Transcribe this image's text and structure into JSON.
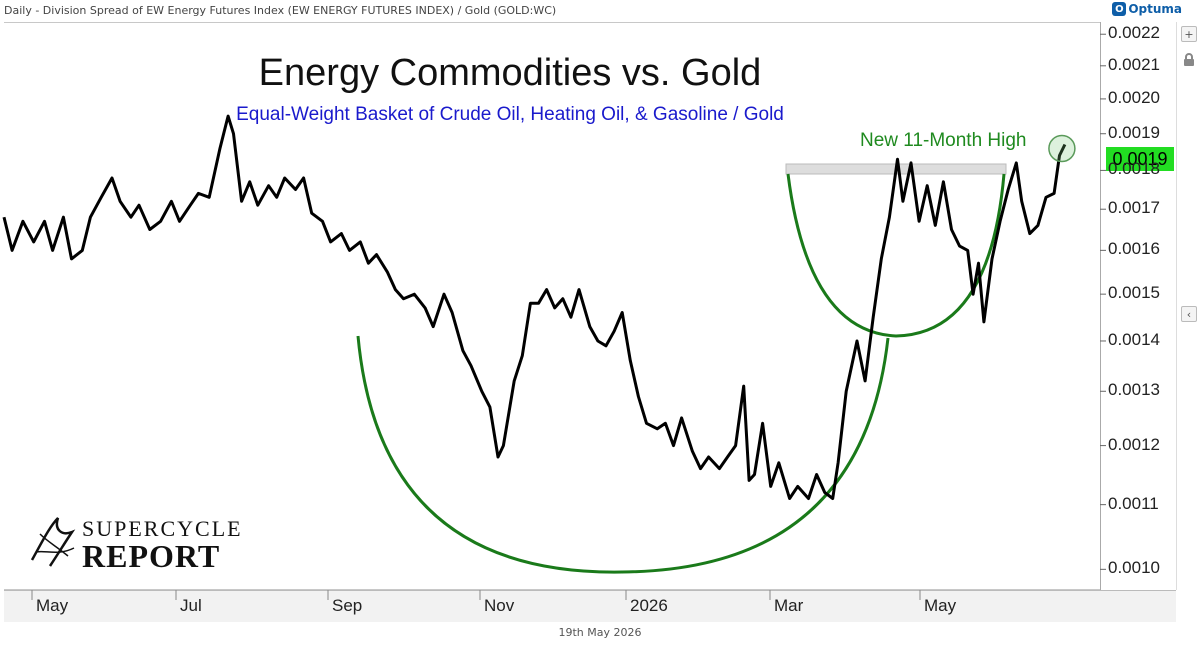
{
  "header": {
    "info": "Daily - Division Spread of EW Energy Futures Index (EW ENERGY FUTURES INDEX) / Gold (GOLD:WC)",
    "logo_text": "Optuma"
  },
  "footer": {
    "date": "19th May 2026"
  },
  "brand": {
    "line1": "SUPERCYCLE",
    "line2": "REPORT"
  },
  "colors": {
    "line": "#000000",
    "arc": "#1a7a1a",
    "annotation": "#1f8a1f",
    "subtitle": "#1a1acc",
    "last_badge": "#22dd22"
  },
  "icons": {
    "lock": "lock-icon",
    "add": "plus-icon",
    "collapse": "chevron-left-icon"
  },
  "chart_data": {
    "type": "line",
    "title": "Energy Commodities vs. Gold",
    "subtitle": "Equal-Weight Basket of Crude Oil, Heating Oil, & Gasoline / Gold",
    "annotation": "New 11-Month High",
    "last_value_label": "0.0019",
    "y_scale": "log",
    "ylim": [
      0.00097,
      0.00224
    ],
    "y_ticks": [
      "0.0022",
      "0.0021",
      "0.0020",
      "0.0019",
      "0.0018",
      "0.0017",
      "0.0016",
      "0.0015",
      "0.0014",
      "0.0013",
      "0.0012",
      "0.0011",
      "0.0010"
    ],
    "x_ticks": [
      "May",
      "Jul",
      "Sep",
      "Nov",
      "2026",
      "Mar",
      "May"
    ],
    "x_range": [
      "2025-04-21",
      "2026-06-01"
    ],
    "legend": "none",
    "grid": false,
    "series": [
      {
        "points": [
          [
            "2025-04-21",
            0.00168
          ],
          [
            "2025-04-24",
            0.0016
          ],
          [
            "2025-04-28",
            0.00167
          ],
          [
            "2025-05-02",
            0.00162
          ],
          [
            "2025-05-06",
            0.00167
          ],
          [
            "2025-05-09",
            0.0016
          ],
          [
            "2025-05-13",
            0.00168
          ],
          [
            "2025-05-16",
            0.00158
          ],
          [
            "2025-05-20",
            0.0016
          ],
          [
            "2025-05-23",
            0.00168
          ],
          [
            "2025-05-27",
            0.00173
          ],
          [
            "2025-05-31",
            0.00178
          ],
          [
            "2025-06-03",
            0.00172
          ],
          [
            "2025-06-07",
            0.00168
          ],
          [
            "2025-06-10",
            0.00171
          ],
          [
            "2025-06-14",
            0.00165
          ],
          [
            "2025-06-18",
            0.00167
          ],
          [
            "2025-06-22",
            0.00172
          ],
          [
            "2025-06-25",
            0.00167
          ],
          [
            "2025-06-29",
            0.00171
          ],
          [
            "2025-07-02",
            0.00174
          ],
          [
            "2025-07-06",
            0.00173
          ],
          [
            "2025-07-10",
            0.00186
          ],
          [
            "2025-07-13",
            0.00195
          ],
          [
            "2025-07-15",
            0.0019
          ],
          [
            "2025-07-18",
            0.00172
          ],
          [
            "2025-07-21",
            0.00177
          ],
          [
            "2025-07-24",
            0.00171
          ],
          [
            "2025-07-28",
            0.00176
          ],
          [
            "2025-07-31",
            0.00173
          ],
          [
            "2025-08-03",
            0.00178
          ],
          [
            "2025-08-07",
            0.00175
          ],
          [
            "2025-08-10",
            0.00178
          ],
          [
            "2025-08-13",
            0.00169
          ],
          [
            "2025-08-17",
            0.00167
          ],
          [
            "2025-08-20",
            0.00162
          ],
          [
            "2025-08-24",
            0.00164
          ],
          [
            "2025-08-27",
            0.0016
          ],
          [
            "2025-08-31",
            0.00162
          ],
          [
            "2025-09-03",
            0.00157
          ],
          [
            "2025-09-06",
            0.00159
          ],
          [
            "2025-09-10",
            0.00155
          ],
          [
            "2025-09-13",
            0.00151
          ],
          [
            "2025-09-16",
            0.00149
          ],
          [
            "2025-09-20",
            0.0015
          ],
          [
            "2025-09-24",
            0.00147
          ],
          [
            "2025-09-27",
            0.00143
          ],
          [
            "2025-10-01",
            0.0015
          ],
          [
            "2025-10-04",
            0.00146
          ],
          [
            "2025-10-08",
            0.00138
          ],
          [
            "2025-10-11",
            0.00135
          ],
          [
            "2025-10-15",
            0.0013
          ],
          [
            "2025-10-18",
            0.00127
          ],
          [
            "2025-10-21",
            0.00118
          ],
          [
            "2025-10-23",
            0.0012
          ],
          [
            "2025-10-27",
            0.00132
          ],
          [
            "2025-10-30",
            0.00137
          ],
          [
            "2025-11-02",
            0.00148
          ],
          [
            "2025-11-05",
            0.00148
          ],
          [
            "2025-11-08",
            0.00151
          ],
          [
            "2025-11-11",
            0.00147
          ],
          [
            "2025-11-14",
            0.00149
          ],
          [
            "2025-11-17",
            0.00145
          ],
          [
            "2025-11-20",
            0.00151
          ],
          [
            "2025-11-24",
            0.00143
          ],
          [
            "2025-11-27",
            0.0014
          ],
          [
            "2025-11-30",
            0.00139
          ],
          [
            "2025-12-03",
            0.00142
          ],
          [
            "2025-12-06",
            0.00146
          ],
          [
            "2025-12-09",
            0.00136
          ],
          [
            "2025-12-12",
            0.00129
          ],
          [
            "2025-12-15",
            0.00124
          ],
          [
            "2025-12-19",
            0.00123
          ],
          [
            "2025-12-22",
            0.00124
          ],
          [
            "2025-12-25",
            0.0012
          ],
          [
            "2025-12-28",
            0.00125
          ],
          [
            "2026-01-01",
            0.00119
          ],
          [
            "2026-01-04",
            0.00116
          ],
          [
            "2026-01-07",
            0.00118
          ],
          [
            "2026-01-11",
            0.00116
          ],
          [
            "2026-01-14",
            0.00118
          ],
          [
            "2026-01-17",
            0.0012
          ],
          [
            "2026-01-20",
            0.00131
          ],
          [
            "2026-01-22",
            0.00114
          ],
          [
            "2026-01-24",
            0.00115
          ],
          [
            "2026-01-27",
            0.00124
          ],
          [
            "2026-01-30",
            0.00113
          ],
          [
            "2026-02-02",
            0.00117
          ],
          [
            "2026-02-06",
            0.00111
          ],
          [
            "2026-02-09",
            0.00113
          ],
          [
            "2026-02-13",
            0.00111
          ],
          [
            "2026-02-16",
            0.00115
          ],
          [
            "2026-02-19",
            0.00112
          ],
          [
            "2026-02-22",
            0.00111
          ],
          [
            "2026-02-24",
            0.00117
          ],
          [
            "2026-02-27",
            0.0013
          ],
          [
            "2026-03-03",
            0.0014
          ],
          [
            "2026-03-06",
            0.00132
          ],
          [
            "2026-03-09",
            0.00145
          ],
          [
            "2026-03-12",
            0.00158
          ],
          [
            "2026-03-15",
            0.00168
          ],
          [
            "2026-03-18",
            0.00183
          ],
          [
            "2026-03-20",
            0.00172
          ],
          [
            "2026-03-23",
            0.00182
          ],
          [
            "2026-03-26",
            0.00167
          ],
          [
            "2026-03-29",
            0.00176
          ],
          [
            "2026-04-01",
            0.00166
          ],
          [
            "2026-04-04",
            0.00177
          ],
          [
            "2026-04-07",
            0.00165
          ],
          [
            "2026-04-10",
            0.00161
          ],
          [
            "2026-04-13",
            0.0016
          ],
          [
            "2026-04-15",
            0.0015
          ],
          [
            "2026-04-17",
            0.00157
          ],
          [
            "2026-04-19",
            0.00144
          ],
          [
            "2026-04-22",
            0.00158
          ],
          [
            "2026-04-25",
            0.00167
          ],
          [
            "2026-04-28",
            0.00175
          ],
          [
            "2026-05-01",
            0.00182
          ],
          [
            "2026-05-03",
            0.00172
          ],
          [
            "2026-05-06",
            0.00164
          ],
          [
            "2026-05-09",
            0.00166
          ],
          [
            "2026-05-12",
            0.00173
          ],
          [
            "2026-05-15",
            0.00174
          ],
          [
            "2026-05-17",
            0.00184
          ],
          [
            "2026-05-19",
            0.00187
          ]
        ]
      }
    ]
  }
}
